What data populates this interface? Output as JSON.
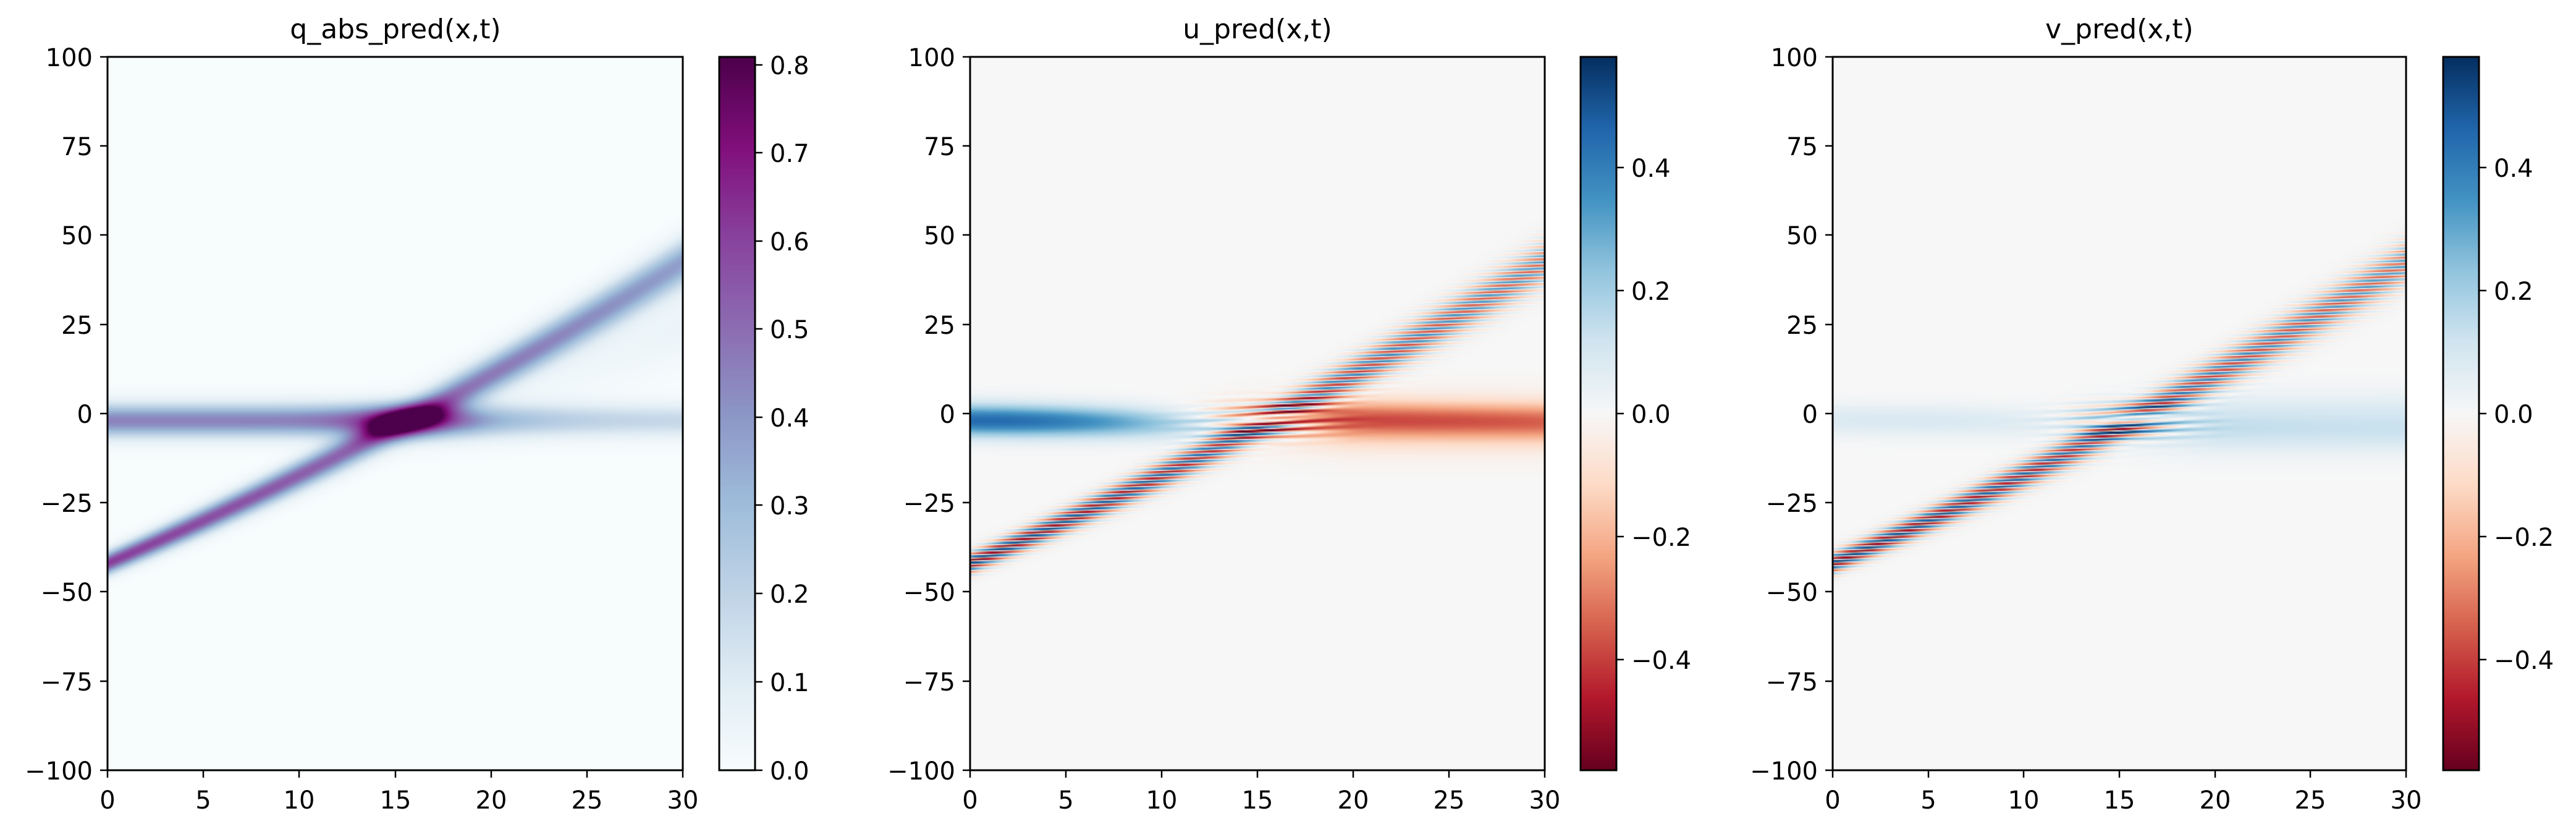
{
  "chart_data": [
    {
      "type": "heatmap",
      "title": "q_abs_pred(x,t)",
      "xlim": [
        0,
        30
      ],
      "ylim": [
        -100,
        100
      ],
      "xticks": [
        "0",
        "5",
        "10",
        "15",
        "20",
        "25",
        "30"
      ],
      "yticks": [
        "100",
        "75",
        "50",
        "25",
        "0",
        "−25",
        "−50",
        "−75",
        "−100"
      ],
      "colormap": "BuPu",
      "colorbar": {
        "range": [
          0,
          0.81
        ],
        "ticks": [
          "0.8",
          "0.7",
          "0.6",
          "0.5",
          "0.4",
          "0.3",
          "0.2",
          "0.1",
          "0.0"
        ]
      },
      "features": [
        {
          "name": "stationary soliton",
          "x": [
            0,
            10
          ],
          "y": [
            -2,
            -2
          ],
          "peak": 0.45
        },
        {
          "name": "moving soliton",
          "x": [
            0,
            30
          ],
          "y": [
            -42,
            42
          ],
          "peak": 0.6
        },
        {
          "name": "collision peak",
          "x": [
            15
          ],
          "y": [
            -2
          ],
          "peak": 0.81
        }
      ]
    },
    {
      "type": "heatmap",
      "title": "u_pred(x,t)",
      "xlim": [
        0,
        30
      ],
      "ylim": [
        -100,
        100
      ],
      "xticks": [
        "0",
        "5",
        "10",
        "15",
        "20",
        "25",
        "30"
      ],
      "yticks": [
        "100",
        "75",
        "50",
        "25",
        "0",
        "−25",
        "−50",
        "−75",
        "−100"
      ],
      "colormap": "RdBu",
      "colorbar": {
        "range": [
          -0.58,
          0.58
        ],
        "ticks": [
          "0.4",
          "0.2",
          "0.0",
          "−0.2",
          "−0.4"
        ]
      }
    },
    {
      "type": "heatmap",
      "title": "v_pred(x,t)",
      "xlim": [
        0,
        30
      ],
      "ylim": [
        -100,
        100
      ],
      "xticks": [
        "0",
        "5",
        "10",
        "15",
        "20",
        "25",
        "30"
      ],
      "yticks": [
        "100",
        "75",
        "50",
        "25",
        "0",
        "−25",
        "−50",
        "−75",
        "−100"
      ],
      "colormap": "RdBu",
      "colorbar": {
        "range": [
          -0.58,
          0.58
        ],
        "ticks": [
          "0.4",
          "0.2",
          "0.0",
          "−0.2",
          "−0.4"
        ]
      }
    }
  ]
}
